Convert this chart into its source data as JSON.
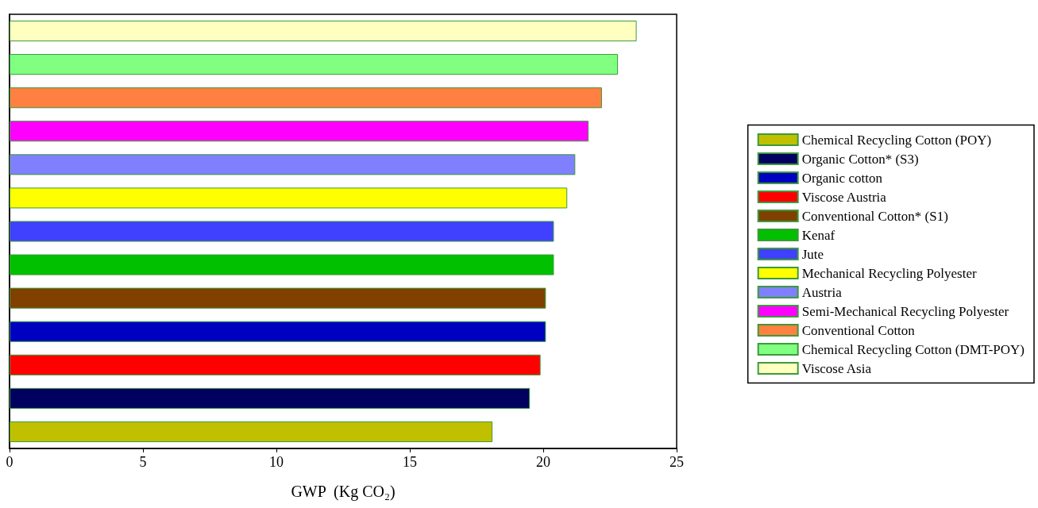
{
  "chart_data": {
    "type": "bar",
    "orientation": "horizontal",
    "stacked": true,
    "xlabel": "GWP  (Kg CO₂)",
    "categories": [
      null,
      null,
      null,
      null,
      null,
      null,
      null,
      null,
      null,
      null,
      null,
      null,
      null
    ],
    "xlim": [
      0,
      25
    ],
    "xticks": [
      0,
      5,
      10,
      15,
      20,
      25
    ],
    "grid": false,
    "legend": "right",
    "series": [
      {
        "name": "Chemical Recycling Cotton (POY)",
        "color": "#c0c000",
        "values": [
          null,
          null,
          null,
          null,
          null,
          null,
          null,
          null,
          null,
          null,
          null,
          null,
          18.1
        ]
      },
      {
        "name": "Organic Cotton* (S3)",
        "color": "#000060",
        "values": [
          null,
          null,
          null,
          null,
          null,
          null,
          null,
          null,
          null,
          null,
          null,
          19.5,
          null
        ]
      },
      {
        "name": "Organic cotton",
        "color": "#0000c0",
        "values": [
          null,
          null,
          null,
          null,
          null,
          null,
          null,
          null,
          null,
          20.1,
          null,
          null,
          null
        ]
      },
      {
        "name": "Viscose Austria",
        "color": "#ff0000",
        "values": [
          null,
          null,
          null,
          null,
          null,
          null,
          null,
          null,
          null,
          null,
          19.9,
          null,
          null
        ]
      },
      {
        "name": "Conventional Cotton* (S1)",
        "color": "#804000",
        "values": [
          null,
          null,
          null,
          null,
          null,
          null,
          null,
          null,
          20.1,
          null,
          null,
          null,
          null
        ]
      },
      {
        "name": "Kenaf",
        "color": "#00c000",
        "values": [
          null,
          null,
          null,
          null,
          null,
          null,
          null,
          20.4,
          null,
          null,
          null,
          null,
          null
        ]
      },
      {
        "name": "Jute",
        "color": "#4040ff",
        "values": [
          null,
          null,
          null,
          null,
          null,
          null,
          20.4,
          null,
          null,
          null,
          null,
          null,
          null
        ]
      },
      {
        "name": "Mechanical Recycling Polyester",
        "color": "#ffff00",
        "values": [
          null,
          null,
          null,
          null,
          null,
          20.9,
          null,
          null,
          null,
          null,
          null,
          null,
          null
        ]
      },
      {
        "name": "Austria",
        "color": "#8080ff",
        "values": [
          null,
          null,
          null,
          null,
          21.2,
          null,
          null,
          null,
          null,
          null,
          null,
          null,
          null
        ]
      },
      {
        "name": "Semi-Mechanical Recycling Polyester",
        "color": "#ff00ff",
        "values": [
          null,
          null,
          null,
          21.7,
          null,
          null,
          null,
          null,
          null,
          null,
          null,
          null,
          null
        ]
      },
      {
        "name": "Conventional Cotton",
        "color": "#ff8040",
        "values": [
          null,
          null,
          22.2,
          null,
          null,
          null,
          null,
          null,
          null,
          null,
          null,
          null,
          null
        ]
      },
      {
        "name": "Chemical Recycling Cotton (DMT-POY)",
        "color": "#80ff80",
        "values": [
          null,
          22.8,
          null,
          null,
          null,
          null,
          null,
          null,
          null,
          null,
          null,
          null,
          null
        ]
      },
      {
        "name": "Viscose Asia",
        "color": "#ffffc0",
        "values": [
          23.5,
          null,
          null,
          null,
          null,
          null,
          null,
          null,
          null,
          null,
          null,
          null,
          null
        ]
      }
    ]
  }
}
